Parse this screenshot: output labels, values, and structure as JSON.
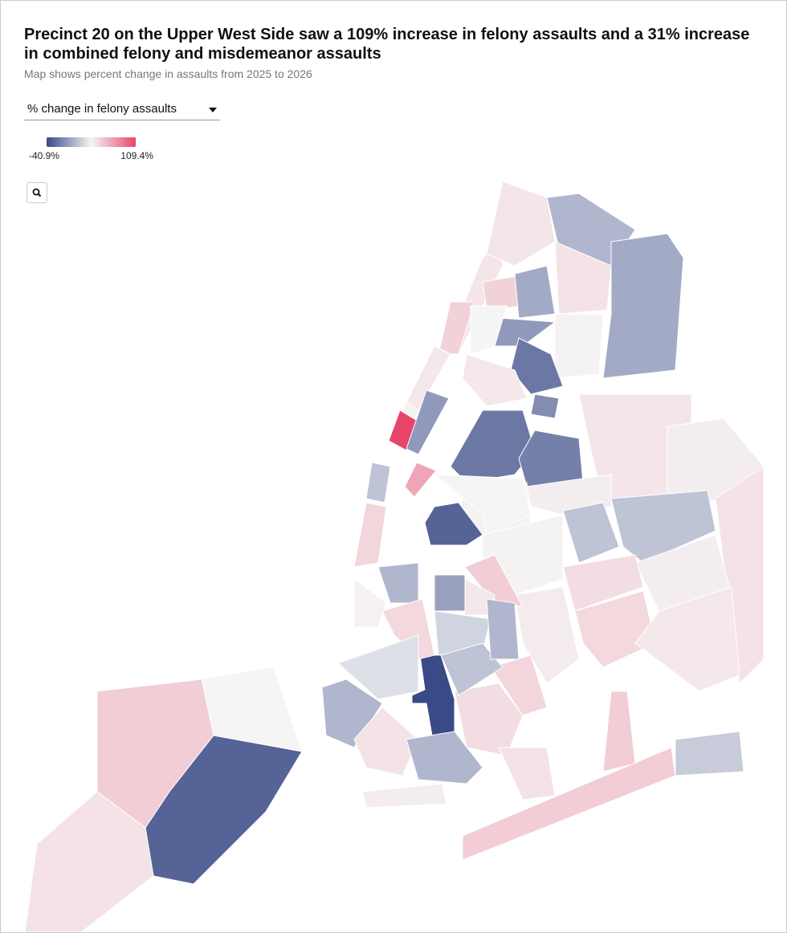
{
  "header": {
    "title": "Precinct 20 on the Upper West Side saw a 109% increase in felony assaults and a 31% increase in combined felony and misdemeanor assaults",
    "subtitle": "Map shows percent change in assaults from 2025 to 2026"
  },
  "controls": {
    "dropdown": "% change in felony assaults"
  },
  "map": {
    "legend": {
      "min": {
        "value": -40.9,
        "label": "-40.9%"
      },
      "max": {
        "value": 109.4,
        "label": "109.4%"
      }
    },
    "values": [
      0,
      25,
      -35,
      12,
      10,
      22,
      8,
      2,
      109.4,
      -22,
      50,
      -12,
      20,
      10,
      -15,
      -18,
      12,
      22,
      -18,
      -22,
      2,
      -30,
      0,
      8,
      -30,
      -28,
      -25,
      10,
      5,
      12,
      2,
      5,
      -12,
      -12,
      5,
      15,
      18,
      8,
      6,
      2,
      25,
      25,
      -10,
      -15,
      -20,
      25,
      8,
      -40.9,
      18,
      -15,
      -5,
      12,
      -15,
      5,
      15,
      20,
      -8,
      -12,
      -15,
      12,
      3,
      -35,
      0
    ]
  }
}
